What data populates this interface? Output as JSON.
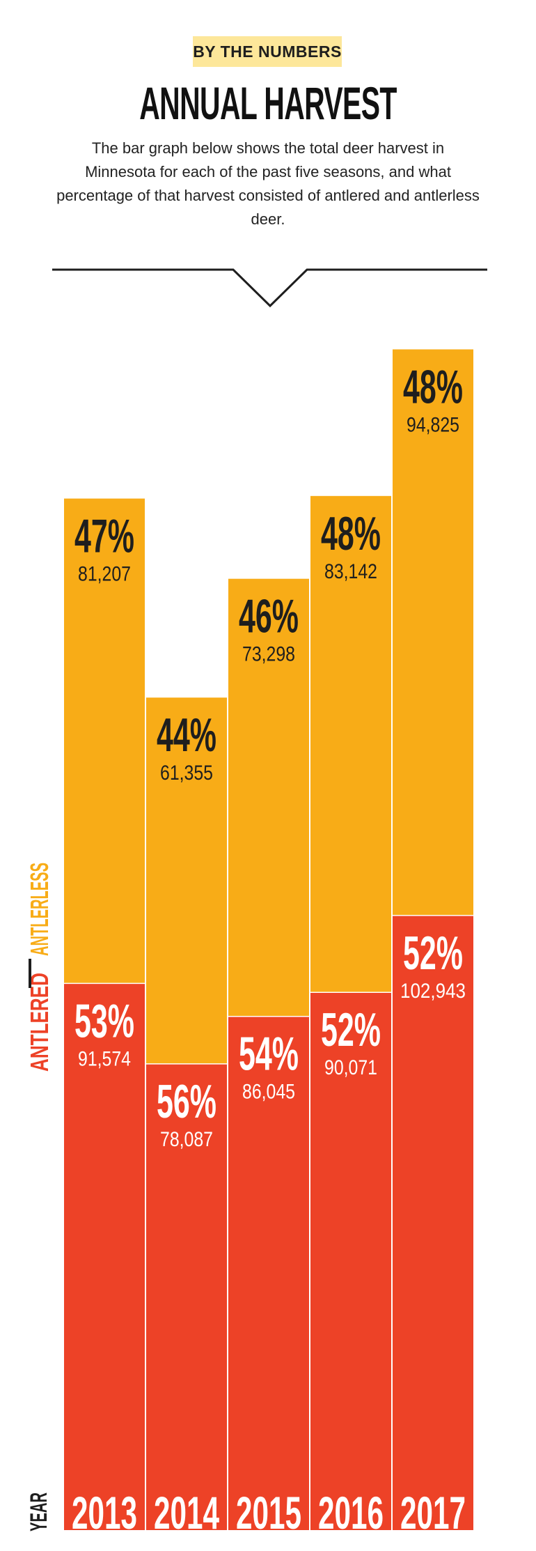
{
  "header": {
    "badge": "BY THE NUMBERS",
    "title": "ANNUAL HARVEST",
    "description": "The bar graph below shows the total deer harvest in Minnesota for each of the past five seasons, and what percentage of that harvest consisted of antlered and antlerless deer."
  },
  "colors": {
    "antlered": "#ed4227",
    "antlerless": "#f8ac17",
    "badge": "#fde79a",
    "text": "#1e1e1e"
  },
  "chart_data": {
    "type": "bar",
    "stacked": true,
    "categories": [
      "2013",
      "2014",
      "2015",
      "2016",
      "2017"
    ],
    "xlabel": "YEAR",
    "legend_position": "left-vertical",
    "series": [
      {
        "name": "ANTLERED",
        "values": [
          91574,
          78087,
          86045,
          90071,
          102943
        ],
        "labels": [
          "91,574",
          "78,087",
          "86,045",
          "90,071",
          "102,943"
        ],
        "percent_labels": [
          "53%",
          "56%",
          "54%",
          "52%",
          "52%"
        ]
      },
      {
        "name": "ANTLERLESS",
        "values": [
          81207,
          61355,
          73298,
          83142,
          94825
        ],
        "labels": [
          "81,207",
          "61,355",
          "73,298",
          "83,142",
          "94,825"
        ],
        "percent_labels": [
          "47%",
          "44%",
          "46%",
          "48%",
          "48%"
        ]
      }
    ],
    "ylim": [
      0,
      196768
    ],
    "grid": false
  }
}
